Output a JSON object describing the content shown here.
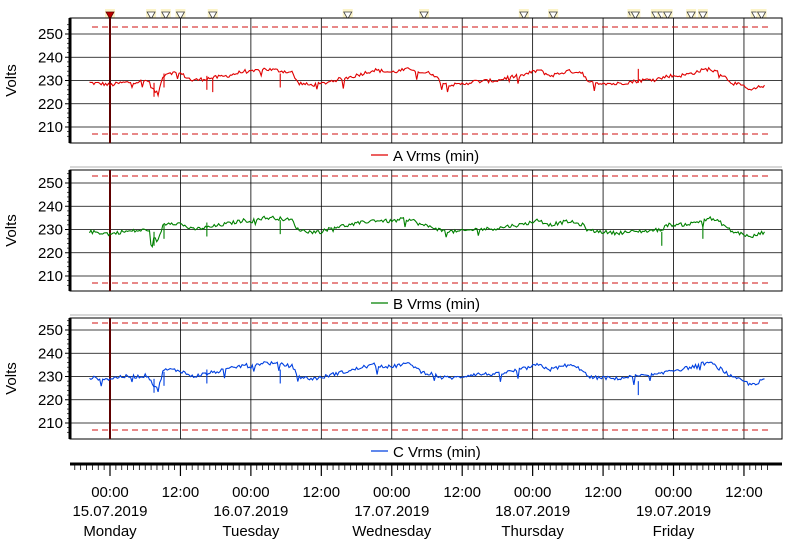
{
  "chart_data": {
    "type": "line",
    "y_unit_label": "Volts",
    "x_ticks": [
      {
        "hours": 0,
        "time": "00:00",
        "date": "15.07.2019",
        "day": "Monday"
      },
      {
        "hours": 12,
        "time": "12:00"
      },
      {
        "hours": 24,
        "time": "00:00",
        "date": "16.07.2019",
        "day": "Tuesday"
      },
      {
        "hours": 36,
        "time": "12:00"
      },
      {
        "hours": 48,
        "time": "00:00",
        "date": "17.07.2019",
        "day": "Wednesday"
      },
      {
        "hours": 60,
        "time": "12:00"
      },
      {
        "hours": 72,
        "time": "00:00",
        "date": "18.07.2019",
        "day": "Thursday"
      },
      {
        "hours": 84,
        "time": "12:00"
      },
      {
        "hours": 96,
        "time": "00:00",
        "date": "19.07.2019",
        "day": "Friday"
      },
      {
        "hours": 108,
        "time": "12:00"
      }
    ],
    "x_range_hours": [
      -6,
      112
    ],
    "event_markers_hours": [
      0,
      7,
      9.5,
      12,
      17.5,
      40.5,
      53.5,
      70.5,
      75.5,
      89,
      89.5,
      93,
      94,
      95,
      99,
      101,
      110,
      111
    ],
    "panels": [
      {
        "series_name": "A Vrms (min)",
        "color": "#e00000",
        "ylim": [
          205,
          255
        ],
        "yticks": [
          210,
          220,
          230,
          240,
          250
        ],
        "limits": [
          207,
          253
        ],
        "keypoints": [
          [
            -3.5,
            229
          ],
          [
            -1,
            228.5
          ],
          [
            0,
            228
          ],
          [
            2,
            229
          ],
          [
            5,
            229.5
          ],
          [
            6.5,
            230
          ],
          [
            7.2,
            226.5
          ],
          [
            8.2,
            224
          ],
          [
            9,
            232
          ],
          [
            10,
            233.5
          ],
          [
            12,
            233
          ],
          [
            14,
            230
          ],
          [
            17,
            231
          ],
          [
            20,
            232
          ],
          [
            23,
            234
          ],
          [
            24,
            233.5
          ],
          [
            26,
            235
          ],
          [
            28,
            234.5
          ],
          [
            31,
            233.5
          ],
          [
            32,
            229
          ],
          [
            34,
            228
          ],
          [
            36,
            228.5
          ],
          [
            38,
            230
          ],
          [
            41,
            231.5
          ],
          [
            43,
            233
          ],
          [
            45,
            234.5
          ],
          [
            48,
            233.5
          ],
          [
            50,
            234.5
          ],
          [
            51.5,
            235
          ],
          [
            53,
            233.5
          ],
          [
            55,
            233
          ],
          [
            56.5,
            229
          ],
          [
            59,
            228
          ],
          [
            62,
            229.5
          ],
          [
            66,
            230
          ],
          [
            68,
            231.5
          ],
          [
            70,
            232
          ],
          [
            73,
            234.5
          ],
          [
            75,
            232
          ],
          [
            78,
            234
          ],
          [
            80.5,
            233.5
          ],
          [
            81.5,
            229
          ],
          [
            84,
            229
          ],
          [
            86,
            228.5
          ],
          [
            89,
            229.5
          ],
          [
            92,
            230.5
          ],
          [
            94,
            231
          ],
          [
            95,
            232
          ],
          [
            97,
            232
          ],
          [
            99,
            233
          ],
          [
            101,
            234.5
          ],
          [
            102,
            235
          ],
          [
            104,
            233
          ],
          [
            106,
            229
          ],
          [
            108,
            227.5
          ],
          [
            109,
            225.5
          ],
          [
            110.5,
            227
          ],
          [
            111.5,
            228
          ]
        ],
        "dips": [
          [
            7.5,
            223
          ],
          [
            9.2,
            227
          ],
          [
            16.5,
            226
          ],
          [
            17.5,
            225
          ],
          [
            29,
            227
          ],
          [
            90,
            229
          ]
        ]
      },
      {
        "series_name": "B Vrms (min)",
        "color": "#008000",
        "ylim": [
          205,
          255
        ],
        "yticks": [
          210,
          220,
          230,
          240,
          250
        ],
        "limits": [
          207,
          253
        ],
        "keypoints": [
          [
            -3.5,
            229
          ],
          [
            -1,
            228.5
          ],
          [
            0,
            228
          ],
          [
            2,
            229
          ],
          [
            5,
            229.5
          ],
          [
            6.5,
            230
          ],
          [
            7.2,
            226.5
          ],
          [
            8.2,
            225
          ],
          [
            9,
            232
          ],
          [
            10,
            233
          ],
          [
            12,
            232.5
          ],
          [
            14,
            230
          ],
          [
            17,
            231
          ],
          [
            20,
            232.5
          ],
          [
            23,
            234
          ],
          [
            24,
            233.5
          ],
          [
            26,
            235
          ],
          [
            28,
            235
          ],
          [
            31,
            234
          ],
          [
            32,
            230
          ],
          [
            34,
            229
          ],
          [
            36,
            229
          ],
          [
            38,
            231
          ],
          [
            41,
            232
          ],
          [
            43,
            233
          ],
          [
            45,
            234
          ],
          [
            48,
            233.5
          ],
          [
            50,
            234.5
          ],
          [
            51.5,
            234
          ],
          [
            53,
            232
          ],
          [
            55,
            231
          ],
          [
            56.5,
            229.5
          ],
          [
            59,
            229
          ],
          [
            62,
            230
          ],
          [
            66,
            230.5
          ],
          [
            68,
            231.5
          ],
          [
            70,
            232
          ],
          [
            73,
            234
          ],
          [
            75,
            232
          ],
          [
            78,
            233.5
          ],
          [
            80.5,
            232
          ],
          [
            81.5,
            229.5
          ],
          [
            84,
            229
          ],
          [
            86,
            228.5
          ],
          [
            89,
            229
          ],
          [
            92,
            229.5
          ],
          [
            94,
            230
          ],
          [
            95,
            232
          ],
          [
            97,
            232
          ],
          [
            99,
            232.5
          ],
          [
            101,
            234
          ],
          [
            102,
            235
          ],
          [
            104,
            233
          ],
          [
            106,
            229
          ],
          [
            108,
            228
          ],
          [
            109,
            226.5
          ],
          [
            110.5,
            228
          ],
          [
            111.5,
            229
          ]
        ],
        "dips": [
          [
            7.5,
            223
          ],
          [
            9.2,
            226
          ],
          [
            16.5,
            227
          ],
          [
            29,
            228
          ],
          [
            94,
            223
          ],
          [
            101,
            226
          ]
        ]
      },
      {
        "series_name": "C Vrms (min)",
        "color": "#0040e0",
        "ylim": [
          205,
          255
        ],
        "yticks": [
          210,
          220,
          230,
          240,
          250
        ],
        "limits": [
          207,
          253
        ],
        "keypoints": [
          [
            -3.5,
            229.5
          ],
          [
            -1,
            229
          ],
          [
            0,
            229
          ],
          [
            2,
            230
          ],
          [
            5,
            230
          ],
          [
            6.5,
            230.5
          ],
          [
            7.2,
            227
          ],
          [
            8.2,
            224
          ],
          [
            9,
            232.5
          ],
          [
            10,
            233
          ],
          [
            12,
            232.5
          ],
          [
            14,
            230
          ],
          [
            17,
            231.5
          ],
          [
            20,
            233
          ],
          [
            23,
            235
          ],
          [
            24,
            234
          ],
          [
            26,
            236
          ],
          [
            28,
            235.5
          ],
          [
            31,
            234.5
          ],
          [
            32,
            230
          ],
          [
            34,
            229
          ],
          [
            36,
            229.5
          ],
          [
            38,
            231
          ],
          [
            41,
            232.5
          ],
          [
            43,
            234
          ],
          [
            45,
            235
          ],
          [
            48,
            234
          ],
          [
            50,
            235.5
          ],
          [
            51.5,
            235
          ],
          [
            53,
            232
          ],
          [
            55,
            231
          ],
          [
            56.5,
            229.5
          ],
          [
            59,
            229.5
          ],
          [
            62,
            231
          ],
          [
            66,
            231
          ],
          [
            68,
            232
          ],
          [
            70,
            233
          ],
          [
            73,
            235
          ],
          [
            75,
            233
          ],
          [
            78,
            235
          ],
          [
            80.5,
            233
          ],
          [
            81.5,
            229.5
          ],
          [
            84,
            229.5
          ],
          [
            86,
            229
          ],
          [
            89,
            230
          ],
          [
            92,
            230.5
          ],
          [
            94,
            231
          ],
          [
            95,
            232.5
          ],
          [
            97,
            233
          ],
          [
            99,
            234
          ],
          [
            101,
            235.5
          ],
          [
            102,
            236
          ],
          [
            104,
            233.5
          ],
          [
            106,
            229.5
          ],
          [
            108,
            228
          ],
          [
            109,
            226.5
          ],
          [
            110.5,
            227.5
          ],
          [
            111.5,
            229
          ]
        ],
        "dips": [
          [
            7.5,
            223
          ],
          [
            9.2,
            226
          ],
          [
            16.5,
            227
          ],
          [
            29,
            227
          ],
          [
            90,
            222
          ]
        ]
      }
    ]
  }
}
